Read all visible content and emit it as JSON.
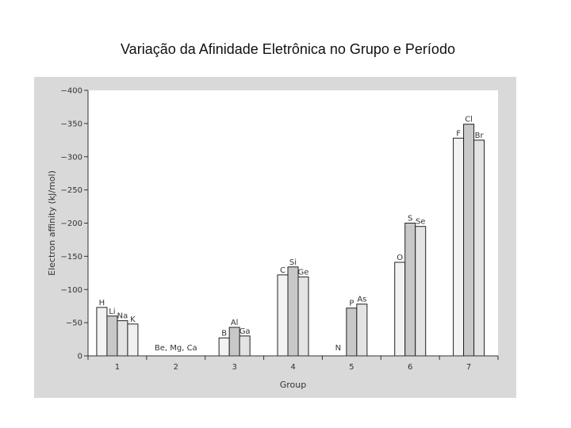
{
  "slide": {
    "title": "Variação da Afinidade Eletrônica no Grupo e Período"
  },
  "colors": {
    "panel": "#d9d9d9",
    "plot_background": "#ffffff",
    "bar_fills": [
      "#f2f2f2",
      "#c8c8c8",
      "#e3e3e3",
      "#f0f0f0"
    ],
    "bar_stroke": "#222222",
    "axis": "#333333"
  },
  "chart_data": {
    "type": "bar",
    "title": "",
    "xlabel": "Group",
    "ylabel": "Electron affinity (kJ/mol)",
    "ylim": [
      0,
      -400
    ],
    "y_ticks": [
      0,
      -50,
      -100,
      -150,
      -200,
      -250,
      -300,
      -350,
      -400
    ],
    "y_tick_labels": [
      "0",
      "−50",
      "−100",
      "−150",
      "−200",
      "−250",
      "−300",
      "−350",
      "−400"
    ],
    "grid": false,
    "categories": [
      "1",
      "2",
      "3",
      "4",
      "5",
      "6",
      "7"
    ],
    "groups": [
      {
        "category": "1",
        "bars": [
          {
            "element": "H",
            "value": -73
          },
          {
            "element": "Li",
            "value": -60
          },
          {
            "element": "Na",
            "value": -53
          },
          {
            "element": "K",
            "value": -48
          }
        ]
      },
      {
        "category": "2",
        "bars": [],
        "note": "Be, Mg, Ca"
      },
      {
        "category": "3",
        "bars": [
          {
            "element": "B",
            "value": -27
          },
          {
            "element": "Al",
            "value": -43
          },
          {
            "element": "Ga",
            "value": -30
          }
        ]
      },
      {
        "category": "4",
        "bars": [
          {
            "element": "C",
            "value": -122
          },
          {
            "element": "Si",
            "value": -134
          },
          {
            "element": "Ge",
            "value": -119
          }
        ]
      },
      {
        "category": "5",
        "bars": [
          {
            "element": "N",
            "value": 0
          },
          {
            "element": "P",
            "value": -72
          },
          {
            "element": "As",
            "value": -78
          }
        ]
      },
      {
        "category": "6",
        "bars": [
          {
            "element": "O",
            "value": -141
          },
          {
            "element": "S",
            "value": -200
          },
          {
            "element": "Se",
            "value": -195
          }
        ]
      },
      {
        "category": "7",
        "bars": [
          {
            "element": "F",
            "value": -328
          },
          {
            "element": "Cl",
            "value": -349
          },
          {
            "element": "Br",
            "value": -325
          }
        ]
      }
    ]
  }
}
